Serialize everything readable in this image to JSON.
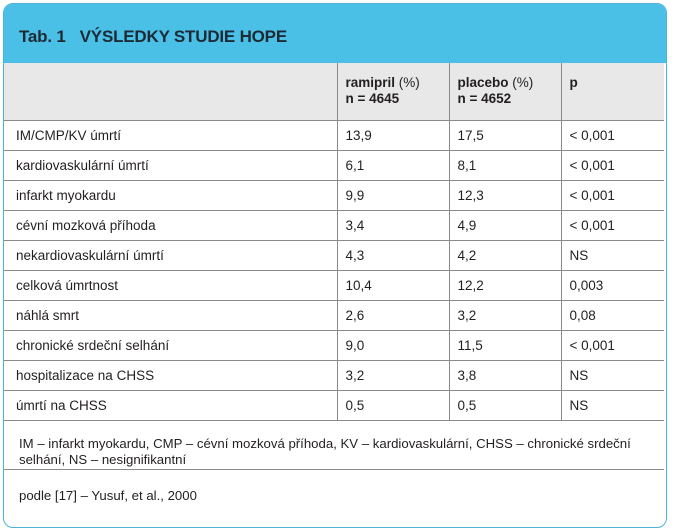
{
  "table_label": "Tab. 1",
  "title": "VÝSLEDKY STUDIE HOPE",
  "columns": [
    {
      "name": "",
      "sub": ""
    },
    {
      "name": "ramipril",
      "unit": "(%)",
      "n": "n = 4645"
    },
    {
      "name": "placebo",
      "unit": "(%)",
      "n": "n = 4652"
    },
    {
      "name": "p",
      "unit": "",
      "n": ""
    }
  ],
  "rows": [
    {
      "label": "IM/CMP/KV úmrtí",
      "ramipril": "13,9",
      "placebo": "17,5",
      "p": "< 0,001"
    },
    {
      "label": "kardiovaskulární úmrtí",
      "ramipril": "6,1",
      "placebo": "8,1",
      "p": "< 0,001"
    },
    {
      "label": "infarkt myokardu",
      "ramipril": "9,9",
      "placebo": "12,3",
      "p": "< 0,001"
    },
    {
      "label": "cévní mozková příhoda",
      "ramipril": "3,4",
      "placebo": "4,9",
      "p": "< 0,001"
    },
    {
      "label": "nekardiovaskulární úmrtí",
      "ramipril": "4,3",
      "placebo": "4,2",
      "p": "NS"
    },
    {
      "label": "celková úmrtnost",
      "ramipril": "10,4",
      "placebo": "12,2",
      "p": "0,003"
    },
    {
      "label": "náhlá smrt",
      "ramipril": "2,6",
      "placebo": "3,2",
      "p": "0,08"
    },
    {
      "label": "chronické srdeční selhání",
      "ramipril": "9,0",
      "placebo": "11,5",
      "p": "< 0,001"
    },
    {
      "label": "hospitalizace na CHSS",
      "ramipril": "3,2",
      "placebo": "3,8",
      "p": "NS"
    },
    {
      "label": "úmrtí na CHSS",
      "ramipril": "0,5",
      "placebo": "0,5",
      "p": "NS"
    }
  ],
  "abbreviations": "IM – infarkt myokardu, CMP – cévní mozková příhoda, KV – kardiovaskulární, CHSS – chronické srdeční selhání, NS – nesignifikantní",
  "source": "podle [17] – Yusuf, et al., 2000",
  "colors": {
    "header_bar": "#4bc0e6",
    "header_row": "#e8e8e8",
    "border": "#4cb3d6",
    "rule": "#8a8a8a"
  }
}
